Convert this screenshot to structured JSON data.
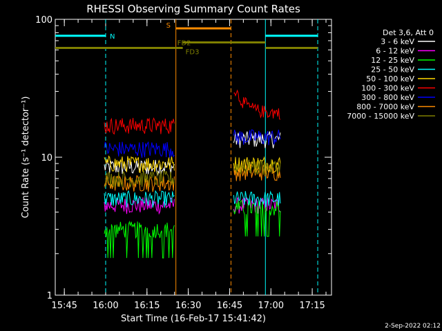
{
  "chart_data": {
    "type": "line",
    "title": "RHESSI Observing Summary Count Rates",
    "xlabel": "Start Time (16-Feb-17 15:41:42)",
    "ylabel": "Count Rate (s⁻¹ detector⁻¹)",
    "yscale": "log",
    "xlim": [
      "15:41:42",
      "17:22:00"
    ],
    "ylim": [
      1,
      100
    ],
    "x_ticks": [
      "15:45",
      "16:00",
      "16:15",
      "16:30",
      "16:45",
      "17:00",
      "17:15"
    ],
    "y_ticks": [
      "1",
      "10",
      "100"
    ],
    "legend_title": "Det 3,6, Att 0",
    "legend_position": "right",
    "segments": [
      {
        "start": "15:59:30",
        "end": "16:25:00"
      },
      {
        "start": "16:46:30",
        "end": "17:03:30"
      }
    ],
    "series": [
      {
        "name": "3 - 6 keV",
        "color": "#ffffff",
        "values_segment1": 8.5,
        "values_segment2": 13.5
      },
      {
        "name": "6 - 12 keV",
        "color": "#ff00ff",
        "values_segment1": 4.5,
        "values_segment2": 4.5
      },
      {
        "name": "12 - 25 keV",
        "color": "#00ff00",
        "values_segment1": 3.0,
        "values_segment2": 4.3
      },
      {
        "name": "25 - 50 keV",
        "color": "#00ffff",
        "values_segment1": 5.0,
        "values_segment2": 5.0
      },
      {
        "name": "50 - 100 keV",
        "color": "#ffd700",
        "values_segment1": 9.0,
        "values_segment2": 9.0
      },
      {
        "name": "100 - 300 keV",
        "color": "#ff0000",
        "values_segment1": 17.0,
        "values_segment2": 21.0
      },
      {
        "name": "300 - 800 keV",
        "color": "#0000ff",
        "values_segment1": 11.5,
        "values_segment2": 14.0
      },
      {
        "name": "800 - 7000 keV",
        "color": "#ff8c00",
        "values_segment1": 6.5,
        "values_segment2": 7.8
      },
      {
        "name": "7000 - 15000 keV",
        "color": "#808000",
        "values_segment1": 7.0,
        "values_segment2": 8.5
      }
    ],
    "annotations": [
      {
        "text": "N",
        "color": "#00ffff",
        "bars": [
          [
            "15:41:42",
            "16:00:00"
          ],
          [
            "16:58:00",
            "17:17:00"
          ]
        ],
        "level": 76
      },
      {
        "text": "S",
        "color": "#ff8c00",
        "bars": [
          [
            "16:25:30",
            "16:45:30"
          ]
        ],
        "level": 86
      },
      {
        "text": "FD2",
        "color": "#808000",
        "bars": [
          [
            "16:28:00",
            "16:58:00"
          ]
        ],
        "level": 68
      },
      {
        "text": "FD3",
        "color": "#808000",
        "bars": [
          [
            "15:41:42",
            "16:28:00"
          ],
          [
            "16:58:00",
            "17:17:00"
          ]
        ],
        "level": 62
      }
    ],
    "vlines": [
      {
        "time": "16:00:00",
        "color": "#00ffff",
        "style": "dashed"
      },
      {
        "time": "16:58:00",
        "color": "#00ffff",
        "style": "solid"
      },
      {
        "time": "17:17:00",
        "color": "#00ffff",
        "style": "dashed"
      },
      {
        "time": "16:25:30",
        "color": "#ff8c00",
        "style": "solid"
      },
      {
        "time": "16:45:30",
        "color": "#ff8c00",
        "style": "dashed"
      }
    ]
  },
  "footer": {
    "date": "2-Sep-2022 02:12"
  }
}
